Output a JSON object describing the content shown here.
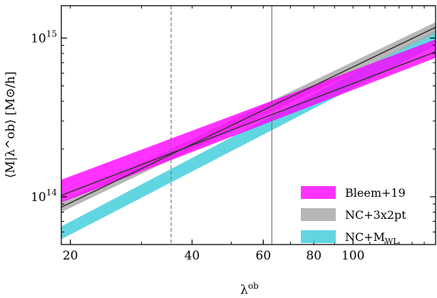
{
  "chart_data": {
    "type": "area",
    "xlabel": "λ",
    "xlabel_sup": "ob",
    "ylabel": "⟨M|λ^ob⟩ [M⊙/h]",
    "x_scale": "log",
    "y_scale": "log",
    "xlim": [
      19,
      160
    ],
    "ylim": [
      50000000000000.0,
      1600000000000000.0
    ],
    "x_ticks": [
      {
        "value": 20,
        "label": "20"
      },
      {
        "value": 40,
        "label": "40"
      },
      {
        "value": 60,
        "label": "60"
      },
      {
        "value": 80,
        "label": "80"
      },
      {
        "value": 100,
        "label": "100"
      }
    ],
    "y_ticks": [
      {
        "value": 100000000000000.0,
        "base": "10",
        "exp": "14"
      },
      {
        "value": 1000000000000000.0,
        "base": "10",
        "exp": "15"
      }
    ],
    "vlines": [
      {
        "x": 35.5,
        "style": "dashed",
        "color": "#777777"
      },
      {
        "x": 63.0,
        "style": "solid",
        "color": "#777777"
      }
    ],
    "legend_position": "lower-right",
    "series": [
      {
        "name": "NC+M",
        "name_sub": "WL",
        "color": "#45cfdc",
        "opacity": 0.85,
        "x": [
          19,
          160
        ],
        "lower": [
          54000000000000.0,
          900000000000000.0
        ],
        "upper": [
          65000000000000.0,
          1120000000000000.0
        ],
        "median": null
      },
      {
        "name": "NC+3x2pt",
        "color": "#aaaaaa",
        "opacity": 0.85,
        "x": [
          19,
          160
        ],
        "lower": [
          80000000000000.0,
          1070000000000000.0
        ],
        "upper": [
          93000000000000.0,
          1260000000000000.0
        ],
        "median": [
          86000000000000.0,
          1170000000000000.0
        ]
      },
      {
        "name": "Bleem+19",
        "color": "#ff00ff",
        "opacity": 0.8,
        "x": [
          19,
          160
        ],
        "lower": [
          92000000000000.0,
          750000000000000.0
        ],
        "upper": [
          128000000000000.0,
          980000000000000.0
        ],
        "median": [
          102000000000000.0,
          820000000000000.0
        ]
      }
    ],
    "legend_order": [
      "Bleem+19",
      "NC+3x2pt",
      "NC+M"
    ]
  }
}
